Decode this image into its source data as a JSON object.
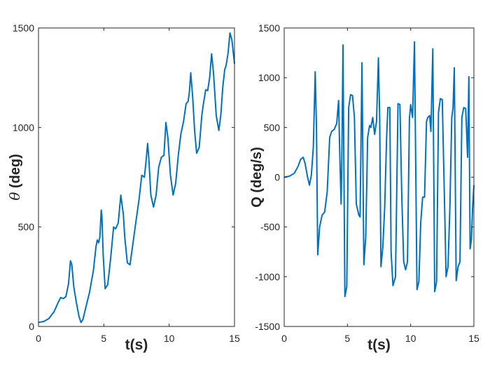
{
  "chart_data": [
    {
      "type": "line",
      "xlabel": "t(s)",
      "ylabel_symbol": "θ",
      "ylabel_text": " (deg)",
      "xlim": [
        0,
        15
      ],
      "ylim": [
        0,
        1500
      ],
      "xticks": [
        0,
        5,
        10,
        15
      ],
      "yticks": [
        0,
        500,
        1000,
        1500
      ],
      "grid": false,
      "color": "#0072bd",
      "series": [
        {
          "x": [
            0,
            0.4,
            0.8,
            1.2,
            1.5,
            1.7,
            1.9,
            2.1,
            2.3,
            2.45,
            2.55,
            2.7,
            2.9,
            3.1,
            3.25,
            3.4,
            3.6,
            3.9,
            4.2,
            4.4,
            4.5,
            4.6,
            4.7,
            4.8,
            4.85,
            4.95,
            5.1,
            5.3,
            5.5,
            5.75,
            5.9,
            6.1,
            6.3,
            6.5,
            6.6,
            6.8,
            7.0,
            7.15,
            7.4,
            7.7,
            7.9,
            8.1,
            8.2,
            8.35,
            8.45,
            8.6,
            8.8,
            9.0,
            9.2,
            9.4,
            9.6,
            9.75,
            9.9,
            10.1,
            10.3,
            10.5,
            10.7,
            10.9,
            11.1,
            11.3,
            11.45,
            11.55,
            11.65,
            11.8,
            11.95,
            12.1,
            12.3,
            12.5,
            12.6,
            12.8,
            12.95,
            13.1,
            13.25,
            13.4,
            13.6,
            13.8,
            13.95,
            14.1,
            14.25,
            14.35,
            14.5,
            14.65,
            14.8,
            15.0
          ],
          "y": [
            20,
            25,
            40,
            75,
            120,
            145,
            140,
            150,
            215,
            330,
            310,
            200,
            120,
            50,
            20,
            35,
            90,
            170,
            280,
            400,
            435,
            420,
            450,
            585,
            560,
            360,
            190,
            210,
            330,
            500,
            490,
            520,
            660,
            560,
            450,
            320,
            310,
            380,
            500,
            640,
            760,
            750,
            810,
            920,
            840,
            660,
            600,
            660,
            800,
            850,
            860,
            1025,
            950,
            760,
            660,
            720,
            860,
            970,
            1030,
            1120,
            1130,
            1180,
            1275,
            1150,
            980,
            870,
            900,
            1060,
            1110,
            1190,
            1185,
            1250,
            1370,
            1270,
            1060,
            985,
            1060,
            1200,
            1290,
            1310,
            1370,
            1475,
            1440,
            1320
          ]
        }
      ]
    },
    {
      "type": "line",
      "xlabel": "t(s)",
      "ylabel": "Q (deg/s)",
      "xlim": [
        0,
        15
      ],
      "ylim": [
        -1500,
        1500
      ],
      "xticks": [
        0,
        5,
        10,
        15
      ],
      "yticks": [
        -1500,
        -1000,
        -500,
        0,
        500,
        1000,
        1500
      ],
      "grid": false,
      "color": "#0072bd",
      "series": [
        {
          "x": [
            0,
            0.4,
            0.8,
            1.1,
            1.3,
            1.5,
            1.65,
            1.85,
            2.0,
            2.15,
            2.3,
            2.45,
            2.55,
            2.65,
            2.8,
            3.0,
            3.2,
            3.4,
            3.6,
            3.75,
            3.95,
            4.15,
            4.3,
            4.4,
            4.5,
            4.55,
            4.65,
            4.8,
            4.95,
            5.1,
            5.25,
            5.4,
            5.55,
            5.7,
            5.9,
            6.0,
            6.15,
            6.3,
            6.45,
            6.6,
            6.75,
            6.85,
            7.0,
            7.15,
            7.3,
            7.45,
            7.55,
            7.65,
            7.8,
            7.95,
            8.1,
            8.2,
            8.35,
            8.45,
            8.6,
            8.8,
            9.0,
            9.15,
            9.3,
            9.45,
            9.6,
            9.75,
            9.9,
            10.0,
            10.15,
            10.3,
            10.5,
            10.65,
            10.8,
            10.95,
            11.1,
            11.25,
            11.35,
            11.5,
            11.6,
            11.75,
            11.9,
            12.05,
            12.2,
            12.35,
            12.5,
            12.65,
            12.8,
            12.95,
            13.1,
            13.25,
            13.35,
            13.45,
            13.6,
            13.75,
            13.9,
            14.05,
            14.2,
            14.35,
            14.5,
            14.6,
            14.7,
            14.8,
            14.9,
            15.0
          ],
          "y": [
            0,
            10,
            40,
            110,
            180,
            200,
            140,
            0,
            -80,
            20,
            300,
            1060,
            500,
            -780,
            -500,
            -380,
            -350,
            -150,
            400,
            460,
            480,
            540,
            770,
            200,
            -270,
            100,
            1330,
            -1200,
            -1100,
            700,
            830,
            820,
            600,
            -270,
            -380,
            -400,
            1150,
            -880,
            -600,
            400,
            520,
            500,
            600,
            430,
            560,
            1200,
            600,
            -900,
            -700,
            -300,
            400,
            700,
            700,
            -750,
            -1090,
            -1000,
            740,
            730,
            -200,
            -850,
            -930,
            -850,
            590,
            730,
            600,
            1360,
            -1130,
            -1050,
            -450,
            -200,
            -200,
            560,
            600,
            620,
            460,
            1290,
            -1150,
            -1050,
            650,
            790,
            780,
            -80,
            -1000,
            -900,
            -300,
            600,
            700,
            1100,
            -1040,
            -900,
            -850,
            600,
            700,
            690,
            200,
            1010,
            -720,
            -630,
            -300,
            -80
          ]
        }
      ]
    }
  ]
}
